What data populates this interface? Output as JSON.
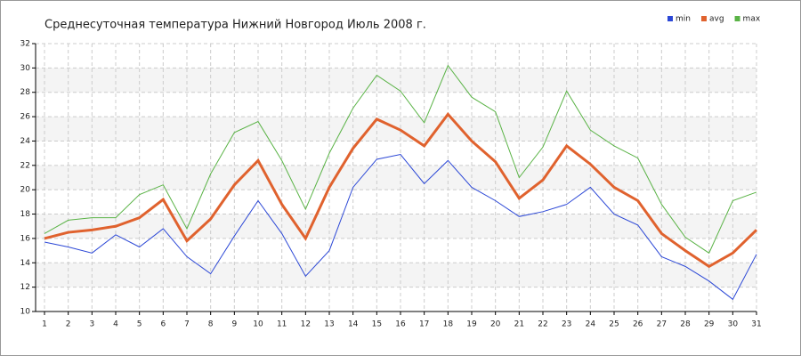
{
  "chart_data": {
    "type": "line",
    "title": "Среднесуточная температура Нижний Новгород  Июль 2008 г.",
    "x": [
      1,
      2,
      3,
      4,
      5,
      6,
      7,
      8,
      9,
      10,
      11,
      12,
      13,
      14,
      15,
      16,
      17,
      18,
      19,
      20,
      21,
      22,
      23,
      24,
      25,
      26,
      27,
      28,
      29,
      30,
      31
    ],
    "xlim": [
      1,
      31
    ],
    "xticks": [
      1,
      2,
      3,
      4,
      5,
      6,
      7,
      8,
      9,
      10,
      11,
      12,
      13,
      14,
      15,
      16,
      17,
      18,
      19,
      20,
      21,
      22,
      23,
      24,
      25,
      26,
      27,
      28,
      29,
      30,
      31
    ],
    "ylim": [
      10,
      32
    ],
    "yticks": [
      10,
      12,
      14,
      16,
      18,
      20,
      22,
      24,
      26,
      28,
      30,
      32
    ],
    "grid": true,
    "legend": "top-right",
    "series": [
      {
        "name": "min",
        "color": "#2b47d6",
        "width": 1,
        "values": [
          15.7,
          15.3,
          14.8,
          16.3,
          15.3,
          16.8,
          14.5,
          13.1,
          16.2,
          19.1,
          16.4,
          12.9,
          15.0,
          20.2,
          22.5,
          22.9,
          20.5,
          22.4,
          20.2,
          19.1,
          17.8,
          18.2,
          18.8,
          20.2,
          18.0,
          17.1,
          14.5,
          13.7,
          12.5,
          11.0,
          14.7
        ]
      },
      {
        "name": "avg",
        "color": "#e0622e",
        "width": 3,
        "values": [
          16.0,
          16.5,
          16.7,
          17.0,
          17.7,
          19.2,
          15.8,
          17.6,
          20.4,
          22.4,
          18.8,
          16.0,
          20.2,
          23.4,
          25.8,
          24.9,
          23.6,
          26.2,
          24.0,
          22.3,
          19.3,
          20.8,
          23.6,
          22.1,
          20.2,
          19.1,
          16.4,
          15.0,
          13.7,
          14.8,
          16.7
        ]
      },
      {
        "name": "max",
        "color": "#5ab346",
        "width": 1,
        "values": [
          16.4,
          17.5,
          17.7,
          17.7,
          19.6,
          20.4,
          16.8,
          21.3,
          24.7,
          25.6,
          22.4,
          18.4,
          23.0,
          26.7,
          29.4,
          28.1,
          25.5,
          30.2,
          27.6,
          26.4,
          21.0,
          23.5,
          28.1,
          24.9,
          23.6,
          22.6,
          18.8,
          16.1,
          14.8,
          19.1,
          19.8
        ]
      }
    ]
  }
}
